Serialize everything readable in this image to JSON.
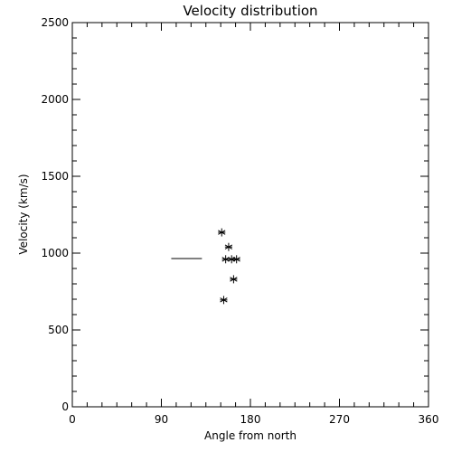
{
  "chart_data": {
    "type": "scatter",
    "title": "Velocity distribution",
    "xlabel": "Angle from north",
    "ylabel": "Velocity (km/s)",
    "xlim": [
      0,
      360
    ],
    "ylim": [
      0,
      2500
    ],
    "xticks": [
      0,
      90,
      180,
      270,
      360
    ],
    "yticks": [
      0,
      500,
      1000,
      1500,
      2000,
      2500
    ],
    "grid": false,
    "points": [
      {
        "x": 151,
        "y": 1135
      },
      {
        "x": 158,
        "y": 1040
      },
      {
        "x": 155,
        "y": 960
      },
      {
        "x": 161,
        "y": 960
      },
      {
        "x": 166,
        "y": 960
      },
      {
        "x": 163,
        "y": 830
      },
      {
        "x": 153,
        "y": 695
      }
    ],
    "segments": [
      {
        "x": [
          100,
          131
        ],
        "y": [
          965,
          965
        ]
      }
    ]
  }
}
